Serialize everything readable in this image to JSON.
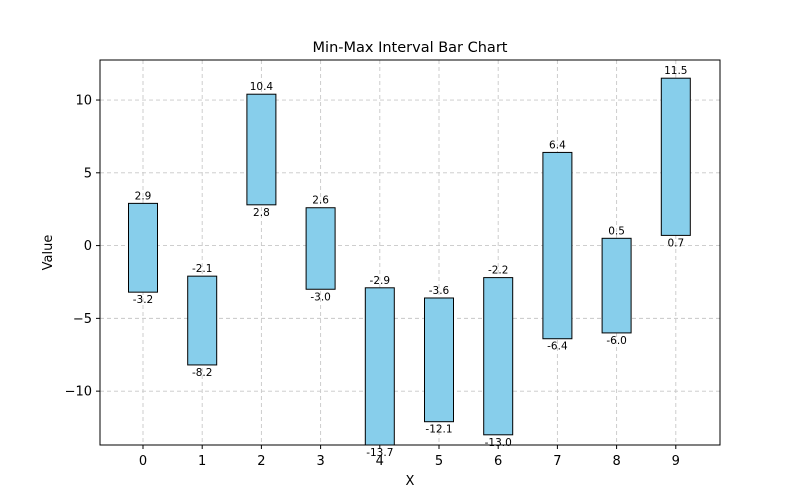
{
  "chart_data": {
    "type": "bar",
    "subtype": "floating-range",
    "title": "Min-Max Interval Bar Chart",
    "xlabel": "X",
    "ylabel": "Value",
    "categories": [
      "0",
      "1",
      "2",
      "3",
      "4",
      "5",
      "6",
      "7",
      "8",
      "9"
    ],
    "min_values": [
      -3.2,
      -8.2,
      2.8,
      -3.0,
      -13.7,
      -12.1,
      -13.0,
      -6.4,
      -6.0,
      0.7
    ],
    "max_values": [
      2.9,
      -2.1,
      10.4,
      2.6,
      -2.9,
      -3.6,
      -2.2,
      6.4,
      0.5,
      11.5
    ],
    "min_labels": [
      "-3.2",
      "-8.2",
      "2.8",
      "-3.0",
      "-13.7",
      "-12.1",
      "-13.0",
      "-6.4",
      "-6.0",
      "0.7"
    ],
    "max_labels": [
      "2.9",
      "-2.1",
      "10.4",
      "2.6",
      "-2.9",
      "-3.6",
      "-2.2",
      "6.4",
      "0.5",
      "11.5"
    ],
    "ylim": [
      -13.7,
      12.75
    ],
    "yticks": [
      -10,
      -5,
      0,
      5,
      10
    ],
    "ytick_labels": [
      "−10",
      "−5",
      "0",
      "5",
      "10"
    ],
    "grid": true,
    "colors": {
      "bar_fill": "#87ceeb",
      "bar_edge": "#000000",
      "grid": "#c8c8c8"
    }
  }
}
